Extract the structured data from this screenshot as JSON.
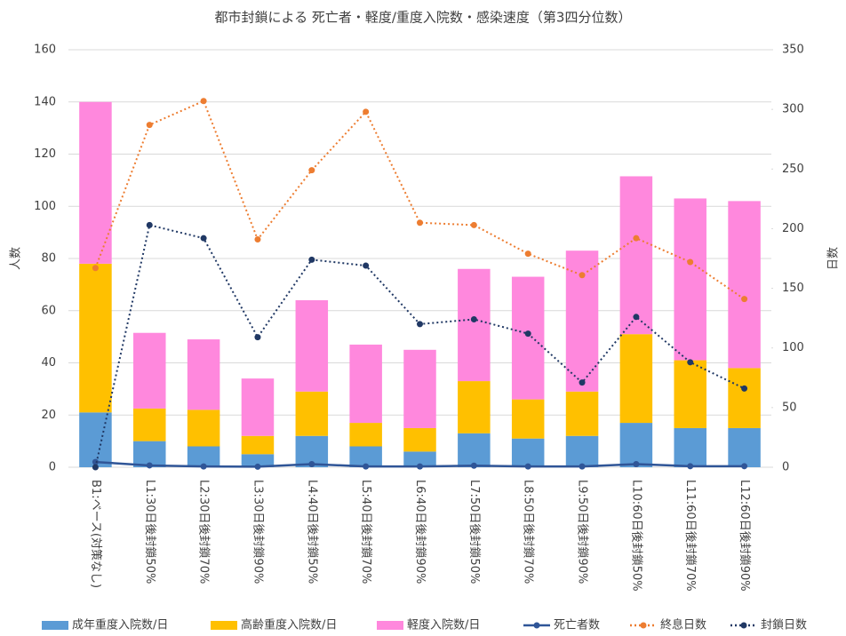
{
  "chart_data": {
    "type": "bar",
    "title": "都市封鎖による 死亡者・軽度/重度入院数・感染速度（第3四分位数）",
    "ylabel": "人数",
    "y2label": "日数",
    "categories": [
      "B1:ベース(対策なし)",
      "L1:30日後封鎖50%",
      "L2:30日後封鎖70%",
      "L3:30日後封鎖90%",
      "L4:40日後封鎖50%",
      "L5:40日後封鎖70%",
      "L6:40日後封鎖90%",
      "L7:50日後封鎖50%",
      "L8:50日後封鎖70%",
      "L9:50日後封鎖90%",
      "L10:60日後封鎖50%",
      "L11:60日後封鎖70%",
      "L12:60日後封鎖90%"
    ],
    "series": [
      {
        "name": "成年重度入院数/日",
        "type": "bar",
        "color": "#5b9bd5",
        "values": [
          21,
          10,
          8,
          5,
          12,
          8,
          6,
          13,
          11,
          12,
          17,
          15,
          15
        ]
      },
      {
        "name": "高齢重度入院数/日",
        "type": "bar",
        "color": "#ffc000",
        "values": [
          57,
          12.5,
          14,
          7,
          17,
          9,
          9,
          20,
          15,
          17,
          34,
          26,
          23
        ]
      },
      {
        "name": "軽度入院数/日",
        "type": "bar",
        "color": "#ff88dd",
        "values": [
          62,
          29,
          27,
          22,
          35,
          30,
          30,
          43,
          47,
          54,
          60.5,
          62,
          64
        ]
      },
      {
        "name": "死亡者数",
        "type": "line",
        "color": "#2f5597",
        "dotted": false,
        "values": [
          2,
          0.7,
          0.3,
          0.2,
          1.2,
          0.3,
          0.3,
          0.6,
          0.3,
          0.3,
          1.2,
          0.4,
          0.4
        ]
      },
      {
        "name": "終息日数",
        "type": "line",
        "axis": "y2",
        "color": "#ed7d31",
        "dotted": true,
        "values": [
          167,
          287,
          307,
          191,
          249,
          298,
          205,
          203,
          179,
          161,
          192,
          172,
          141
        ]
      },
      {
        "name": "封鎖日数",
        "type": "line",
        "axis": "y2",
        "color": "#203864",
        "dotted": true,
        "values": [
          0,
          203,
          192,
          109,
          174,
          169,
          120,
          124,
          112,
          71,
          126,
          88,
          66
        ]
      }
    ],
    "ylim": [
      0,
      160
    ],
    "yticks": [
      0,
      20,
      40,
      60,
      80,
      100,
      120,
      140,
      160
    ],
    "y2lim": [
      0,
      350
    ],
    "y2ticks": [
      0,
      50,
      100,
      150,
      200,
      250,
      300,
      350
    ],
    "grid": true
  }
}
